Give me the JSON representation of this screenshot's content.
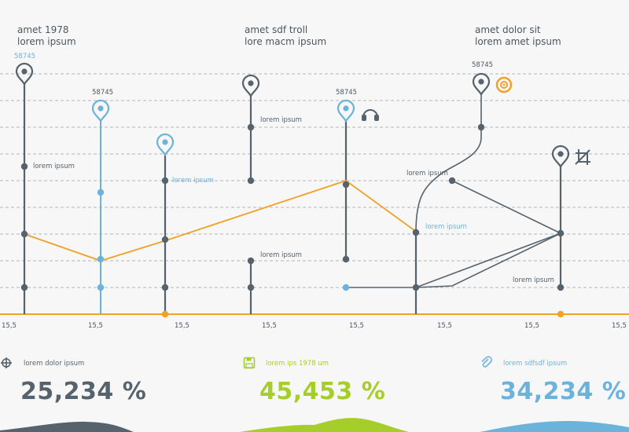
{
  "colors": {
    "gray": "#56636c",
    "blue": "#6cb3dc",
    "orange": "#f0a127",
    "green": "#a6ce2a"
  },
  "headers": [
    {
      "line1": "amet 1978",
      "line2": "lorem ipsum"
    },
    {
      "line1": "amet sdf troll",
      "line2": "lore macm ipsum"
    },
    {
      "line1": "amet dolor sit",
      "line2": "lorem amet ipsum"
    }
  ],
  "pin_values": [
    "58745",
    "58745",
    "58745",
    "58745"
  ],
  "labels": {
    "l1": "lorem ipsum",
    "l2": "lorem ipsum",
    "l3": "lorem ipsum",
    "l4": "lorem ipsum",
    "l5": "lorem ipsum",
    "l6": "lorem ipsum",
    "l7": "lorem ipsum",
    "l8": "lorem ipsum"
  },
  "chart_data": {
    "type": "line",
    "x_ticks": [
      "15,5",
      "15,5",
      "15,5",
      "15,5",
      "15,5",
      "15,5",
      "15,5",
      "15,5"
    ],
    "series": [
      {
        "color": "orange",
        "points": [
          [
            0,
            3
          ],
          [
            1,
            2
          ],
          [
            2,
            2.75
          ],
          [
            4,
            5
          ],
          [
            5,
            3.1
          ]
        ]
      }
    ],
    "grid": true
  },
  "stats": [
    {
      "icon": "crosshair-icon",
      "label": "lorem dolor ipsum",
      "value": "25,234 %",
      "color": "#56636c"
    },
    {
      "icon": "floppy-disk-icon",
      "label": "lorem ips 1978 um",
      "value": "45,453 %",
      "color": "#a6ce2a"
    },
    {
      "icon": "paperclip-icon",
      "label": "lorem sdfsdf ipsum",
      "value": "34,234 %",
      "color": "#6cb3dc"
    }
  ]
}
